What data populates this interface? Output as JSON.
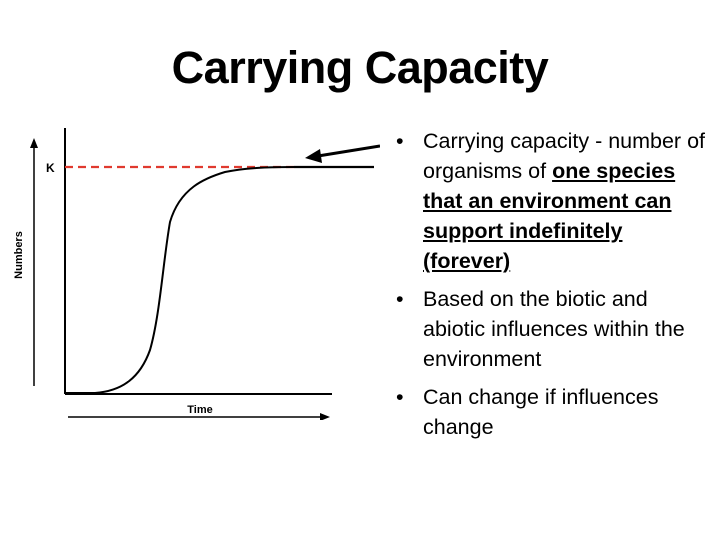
{
  "title": "Carrying Capacity",
  "diagram": {
    "y_axis_label": "Numbers",
    "x_axis_label": "Time",
    "k_label": "K",
    "curve_type": "logistic growth (S-curve)",
    "k_line_style": "red dashed"
  },
  "bullets": [
    {
      "intro": "Carrying capacity - number of organisms of",
      "emphasis": "one species that an environment can support indefinitely (forever)"
    },
    {
      "text": "Based on the biotic and abiotic influences within the environment"
    },
    {
      "text": "Can change if influences change"
    }
  ],
  "colors": {
    "k_line": "#e03a2f",
    "curve": "#000000",
    "text": "#000000",
    "background": "#ffffff"
  }
}
